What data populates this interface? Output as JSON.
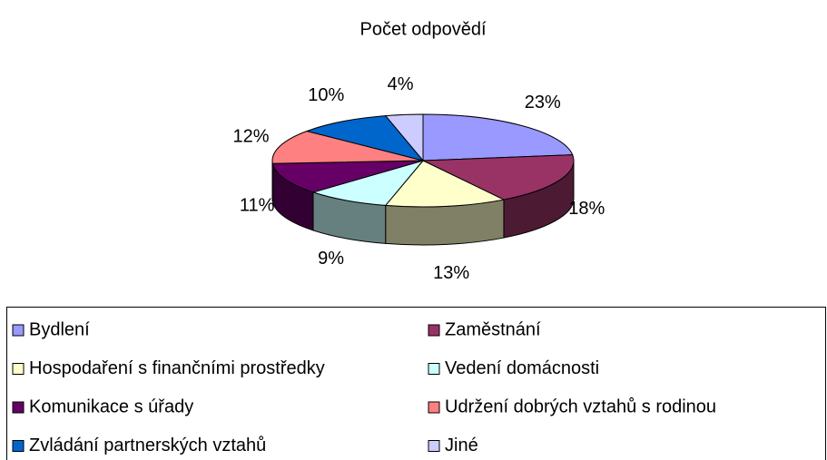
{
  "chart_data": {
    "type": "pie3d",
    "title": "Počet odpovědí",
    "categories": [
      "Bydlení",
      "Zaměstnání",
      "Hospodaření s finančními prostředky",
      "Vedení domácnosti",
      "Komunikace s úřady",
      "Udržení dobrých  vztahů s rodinou",
      "Zvládání partnerských vztahů",
      "Jiné"
    ],
    "values": [
      23,
      18,
      13,
      9,
      11,
      12,
      10,
      4
    ],
    "value_labels": [
      "23%",
      "18%",
      "13%",
      "9%",
      "11%",
      "12%",
      "10%",
      "4%"
    ],
    "colors": [
      "#9999ff",
      "#993366",
      "#ffffcc",
      "#ccffff",
      "#660066",
      "#ff8080",
      "#0066cc",
      "#ccccff"
    ],
    "legend": "bottom"
  }
}
